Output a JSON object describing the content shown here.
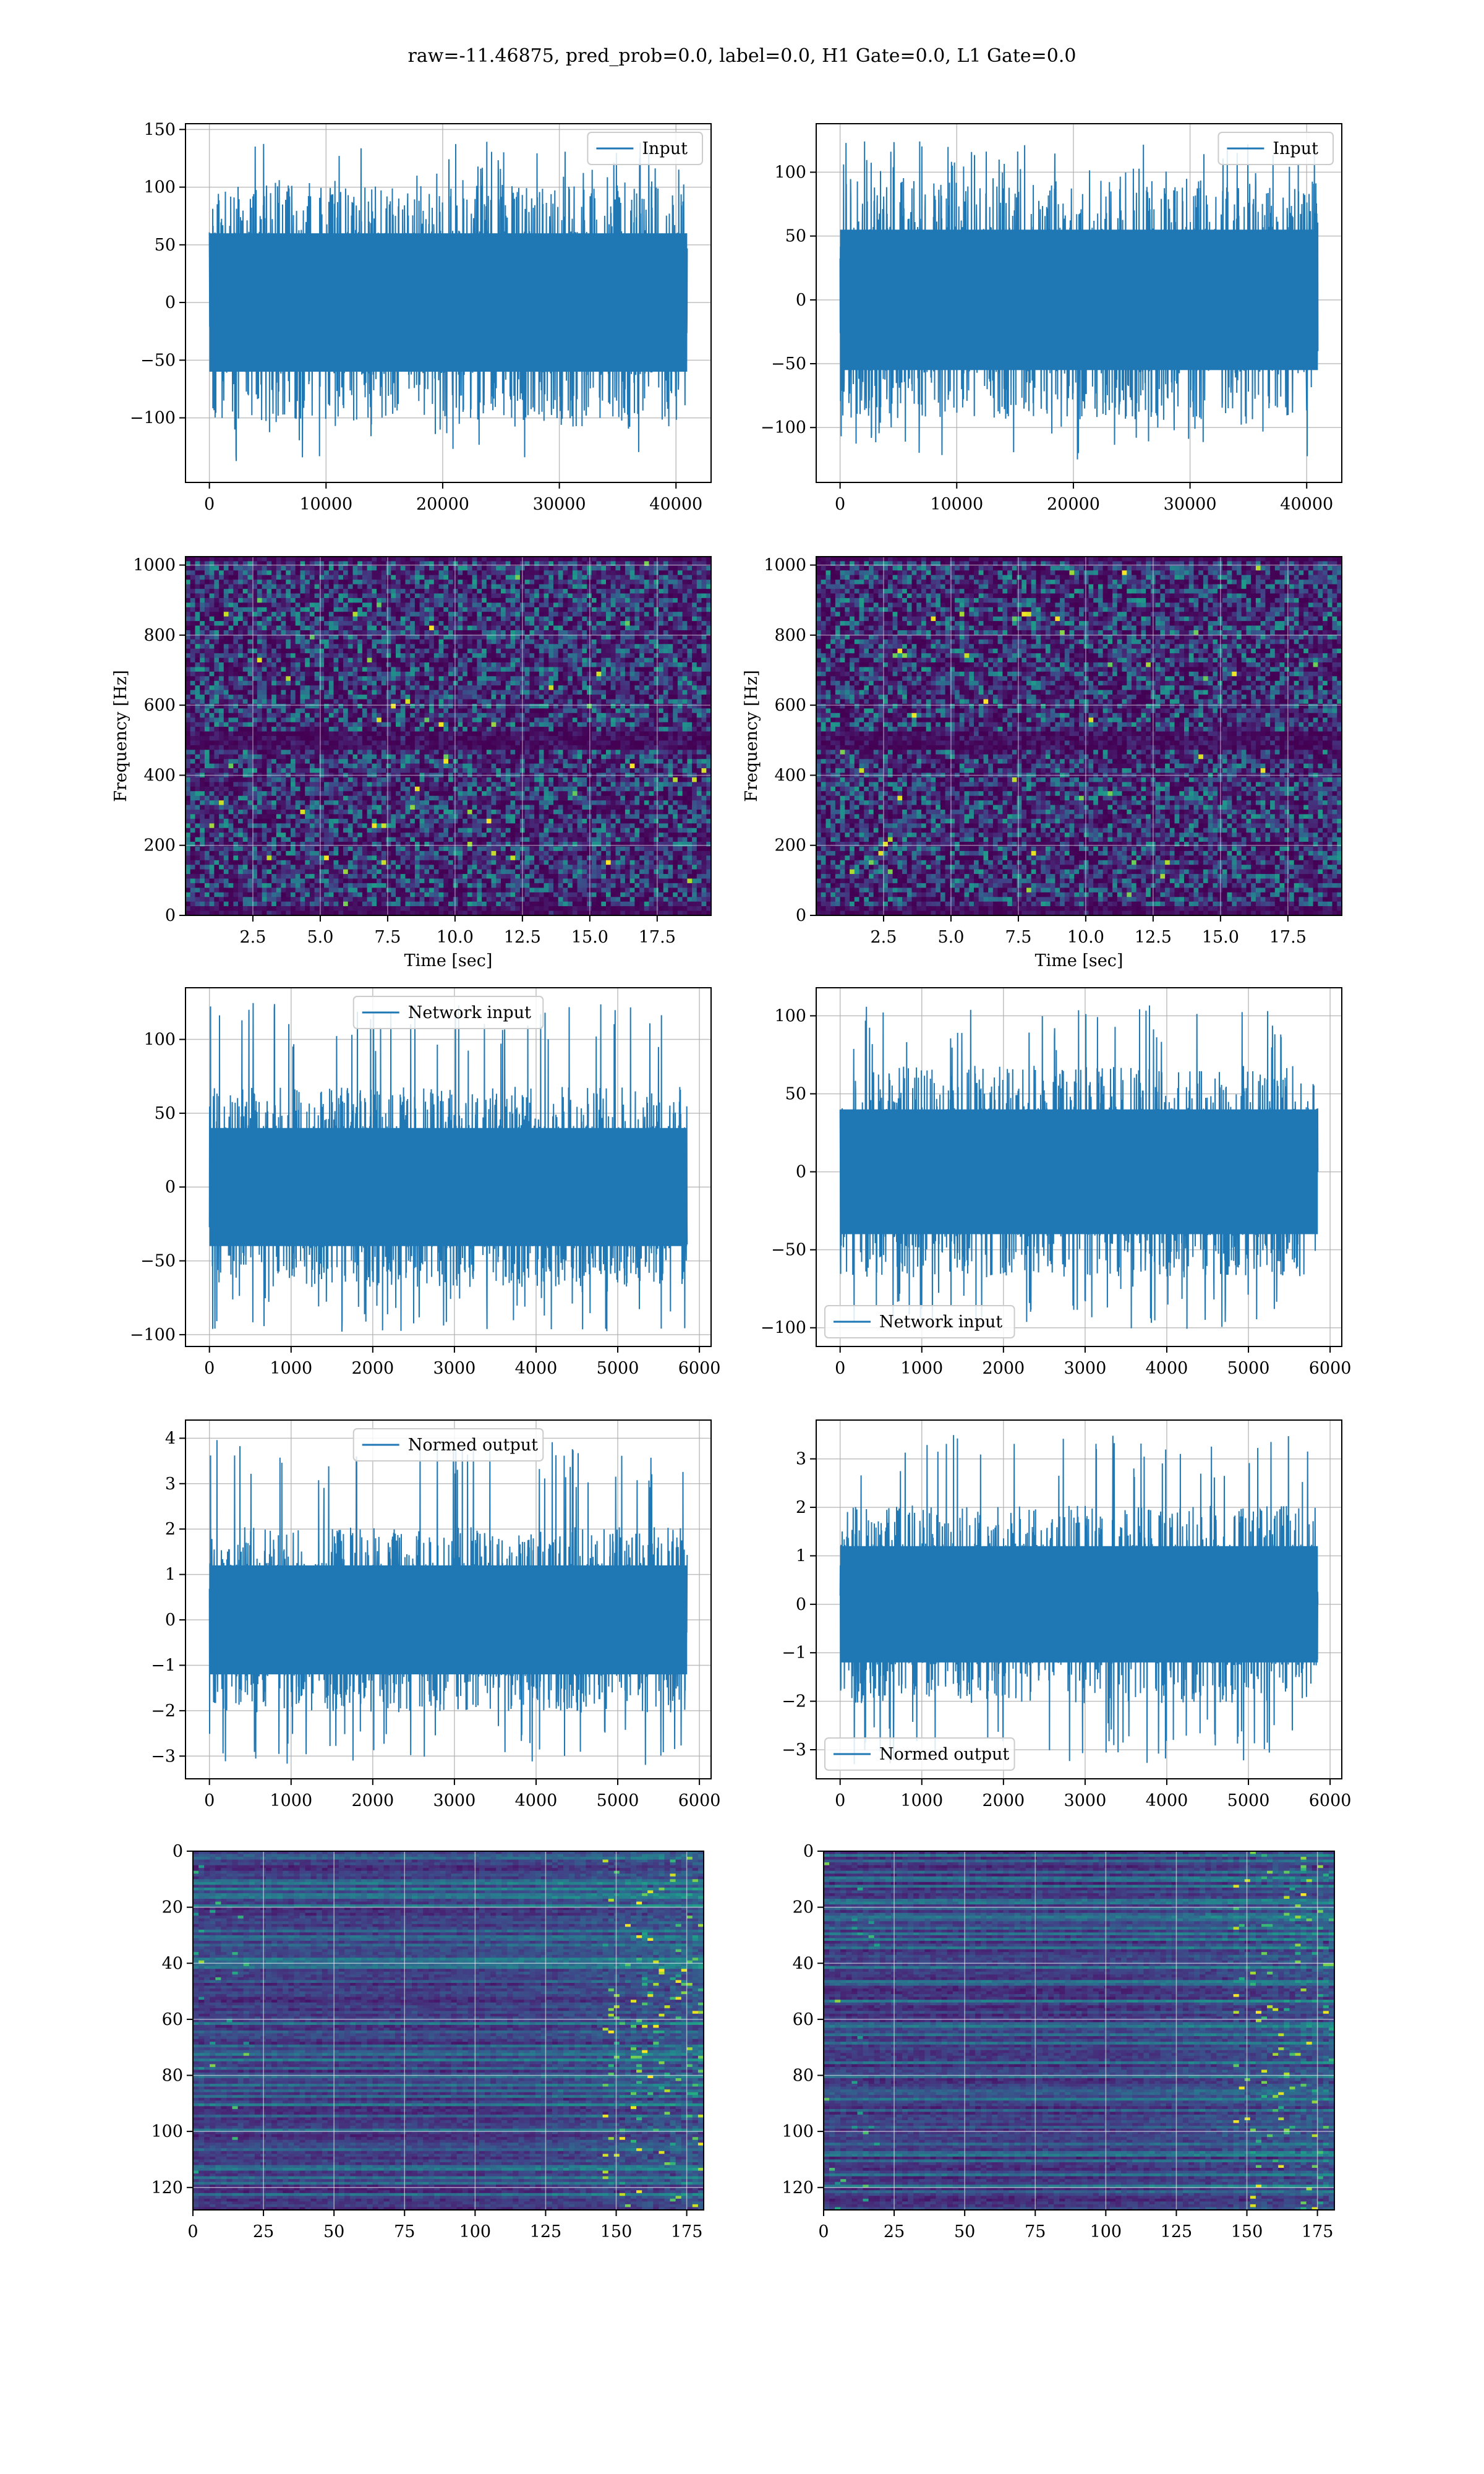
{
  "figure": {
    "suptitle": "raw=-11.46875, pred_prob=0.0, label=0.0, H1 Gate=0.0, L1 Gate=0.0"
  },
  "colors": {
    "line": "#1f77b4",
    "grid": "#b0b0b0",
    "heat_low": "#440154",
    "heat_mid": "#3b528b",
    "heat_teal": "#21918c",
    "heat_green": "#5ec962",
    "heat_high": "#fde725"
  },
  "chart_data": [
    {
      "type": "line",
      "id": "input-left",
      "legend": "Input",
      "legend_loc": "upper right",
      "x_range": [
        0,
        40960
      ],
      "y_range": [
        -140,
        140
      ],
      "xlim": [
        -2048,
        43008
      ],
      "ylim": [
        -156,
        155
      ],
      "envelope": [
        -60,
        60
      ],
      "xticks": [
        0,
        10000,
        20000,
        30000,
        40000
      ],
      "yticks": [
        -100,
        -50,
        0,
        50,
        100,
        150
      ]
    },
    {
      "type": "line",
      "id": "input-right",
      "legend": "Input",
      "legend_loc": "upper right",
      "x_range": [
        0,
        40960
      ],
      "y_range": [
        -125,
        125
      ],
      "xlim": [
        -2048,
        43008
      ],
      "ylim": [
        -143,
        138
      ],
      "envelope": [
        -55,
        55
      ],
      "xticks": [
        0,
        10000,
        20000,
        30000,
        40000
      ],
      "yticks": [
        -100,
        -50,
        0,
        50,
        100
      ]
    },
    {
      "type": "heatmap",
      "id": "spec-left",
      "xlabel": "Time [sec]",
      "ylabel": "Frequency [Hz]",
      "xlim": [
        0,
        19.5
      ],
      "ylim": [
        0,
        1024
      ],
      "xticks": [
        2.5,
        5.0,
        7.5,
        10.0,
        12.5,
        15.0,
        17.5
      ],
      "yticks": [
        0,
        200,
        400,
        600,
        800,
        1000
      ],
      "dark_band": [
        470,
        530
      ],
      "seed": 11
    },
    {
      "type": "heatmap",
      "id": "spec-right",
      "xlabel": "Time [sec]",
      "ylabel": "Frequency [Hz]",
      "xlim": [
        0,
        19.5
      ],
      "ylim": [
        0,
        1024
      ],
      "xticks": [
        2.5,
        5.0,
        7.5,
        10.0,
        12.5,
        15.0,
        17.5
      ],
      "yticks": [
        0,
        200,
        400,
        600,
        800,
        1000
      ],
      "dark_band": [
        470,
        530
      ],
      "seed": 23
    },
    {
      "type": "line",
      "id": "netin-left",
      "legend": "Network input",
      "legend_loc": "upper center",
      "x_range": [
        0,
        5850
      ],
      "y_range": [
        -98,
        125
      ],
      "xlim": [
        -293,
        6143
      ],
      "ylim": [
        -108,
        135
      ],
      "envelope": [
        -40,
        40
      ],
      "xticks": [
        0,
        1000,
        2000,
        3000,
        4000,
        5000,
        6000
      ],
      "yticks": [
        -100,
        -50,
        0,
        50,
        100
      ]
    },
    {
      "type": "line",
      "id": "netin-right",
      "legend": "Network input",
      "legend_loc": "lower left",
      "x_range": [
        0,
        5850
      ],
      "y_range": [
        -102,
        108
      ],
      "xlim": [
        -293,
        6143
      ],
      "ylim": [
        -112,
        118
      ],
      "envelope": [
        -40,
        40
      ],
      "xticks": [
        0,
        1000,
        2000,
        3000,
        4000,
        5000,
        6000
      ],
      "yticks": [
        -100,
        -50,
        0,
        50,
        100
      ]
    },
    {
      "type": "line",
      "id": "norm-left",
      "legend": "Normed output",
      "legend_loc": "upper center",
      "x_range": [
        0,
        5850
      ],
      "y_range": [
        -3.2,
        4.0
      ],
      "xlim": [
        -293,
        6143
      ],
      "ylim": [
        -3.5,
        4.4
      ],
      "envelope": [
        -1.2,
        1.2
      ],
      "xticks": [
        0,
        1000,
        2000,
        3000,
        4000,
        5000,
        6000
      ],
      "yticks": [
        -3,
        -2,
        -1,
        0,
        1,
        2,
        3,
        4
      ]
    },
    {
      "type": "line",
      "id": "norm-right",
      "legend": "Normed output",
      "legend_loc": "lower left",
      "x_range": [
        0,
        5850
      ],
      "y_range": [
        -3.3,
        3.5
      ],
      "xlim": [
        -293,
        6143
      ],
      "ylim": [
        -3.6,
        3.8
      ],
      "envelope": [
        -1.2,
        1.2
      ],
      "xticks": [
        0,
        1000,
        2000,
        3000,
        4000,
        5000,
        6000
      ],
      "yticks": [
        -3,
        -2,
        -1,
        0,
        1,
        2,
        3
      ]
    },
    {
      "type": "heatmap",
      "id": "feat-left",
      "xlim": [
        0,
        181
      ],
      "ylim": [
        128,
        0
      ],
      "xticks": [
        0,
        25,
        50,
        75,
        100,
        125,
        150,
        175
      ],
      "yticks": [
        0,
        20,
        40,
        60,
        80,
        100,
        120
      ],
      "seed": 37
    },
    {
      "type": "heatmap",
      "id": "feat-right",
      "xlim": [
        0,
        181
      ],
      "ylim": [
        128,
        0
      ],
      "xticks": [
        0,
        25,
        50,
        75,
        100,
        125,
        150,
        175
      ],
      "yticks": [
        0,
        20,
        40,
        60,
        80,
        100,
        120
      ],
      "seed": 53
    }
  ]
}
